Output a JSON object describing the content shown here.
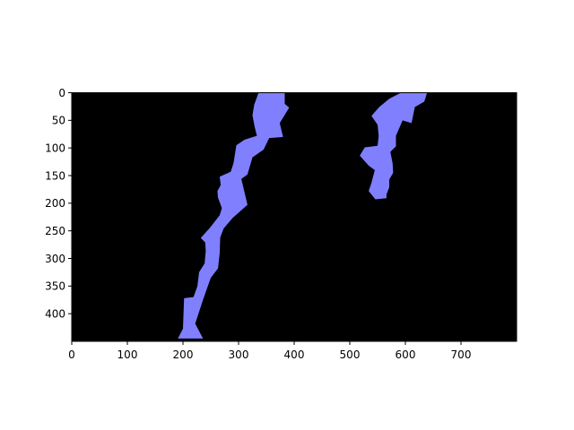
{
  "chart_data": {
    "type": "area",
    "title": "",
    "xlabel": "",
    "ylabel": "",
    "xlim": [
      0,
      800
    ],
    "ylim": [
      450,
      0
    ],
    "y_axis_inverted": true,
    "grid": false,
    "background_color": "#000000",
    "fill_color": "#8080ff",
    "x_ticks": [
      0,
      100,
      200,
      300,
      400,
      500,
      600,
      700
    ],
    "y_ticks": [
      0,
      50,
      100,
      150,
      200,
      250,
      300,
      350,
      400
    ],
    "x_tick_labels": [
      "0",
      "100",
      "200",
      "300",
      "400",
      "500",
      "600",
      "700"
    ],
    "y_tick_labels": [
      "0",
      "50",
      "100",
      "150",
      "200",
      "250",
      "300",
      "350",
      "400"
    ],
    "regions": [
      {
        "name": "",
        "points": [
          [
            336,
            0
          ],
          [
            383,
            0
          ],
          [
            383,
            20
          ],
          [
            391,
            27
          ],
          [
            374,
            55
          ],
          [
            380,
            80
          ],
          [
            355,
            82
          ],
          [
            345,
            103
          ],
          [
            325,
            117
          ],
          [
            316,
            148
          ],
          [
            305,
            156
          ],
          [
            316,
            203
          ],
          [
            289,
            227
          ],
          [
            273,
            246
          ],
          [
            267,
            262
          ],
          [
            266,
            291
          ],
          [
            263,
            318
          ],
          [
            250,
            335
          ],
          [
            236,
            375
          ],
          [
            222,
            418
          ],
          [
            236,
            445
          ],
          [
            191,
            445
          ],
          [
            200,
            427
          ],
          [
            202,
            372
          ],
          [
            219,
            370
          ],
          [
            226,
            350
          ],
          [
            229,
            325
          ],
          [
            239,
            309
          ],
          [
            241,
            286
          ],
          [
            240,
            271
          ],
          [
            232,
            263
          ],
          [
            248,
            245
          ],
          [
            266,
            222
          ],
          [
            270,
            209
          ],
          [
            263,
            190
          ],
          [
            262,
            178
          ],
          [
            268,
            167
          ],
          [
            266,
            152
          ],
          [
            286,
            143
          ],
          [
            291,
            127
          ],
          [
            296,
            95
          ],
          [
            311,
            85
          ],
          [
            333,
            78
          ],
          [
            329,
            62
          ],
          [
            325,
            41
          ],
          [
            328,
            22
          ]
        ]
      },
      {
        "name": "",
        "points": [
          [
            592,
            0
          ],
          [
            639,
            0
          ],
          [
            634,
            16
          ],
          [
            617,
            26
          ],
          [
            611,
            55
          ],
          [
            595,
            50
          ],
          [
            583,
            78
          ],
          [
            583,
            97
          ],
          [
            573,
            107
          ],
          [
            577,
            128
          ],
          [
            578,
            145
          ],
          [
            571,
            157
          ],
          [
            571,
            171
          ],
          [
            566,
            184
          ],
          [
            566,
            191
          ],
          [
            546,
            193
          ],
          [
            534,
            178
          ],
          [
            539,
            163
          ],
          [
            545,
            140
          ],
          [
            534,
            132
          ],
          [
            518,
            114
          ],
          [
            527,
            99
          ],
          [
            550,
            96
          ],
          [
            552,
            78
          ],
          [
            550,
            58
          ],
          [
            539,
            42
          ],
          [
            553,
            26
          ],
          [
            571,
            11
          ]
        ]
      }
    ]
  }
}
